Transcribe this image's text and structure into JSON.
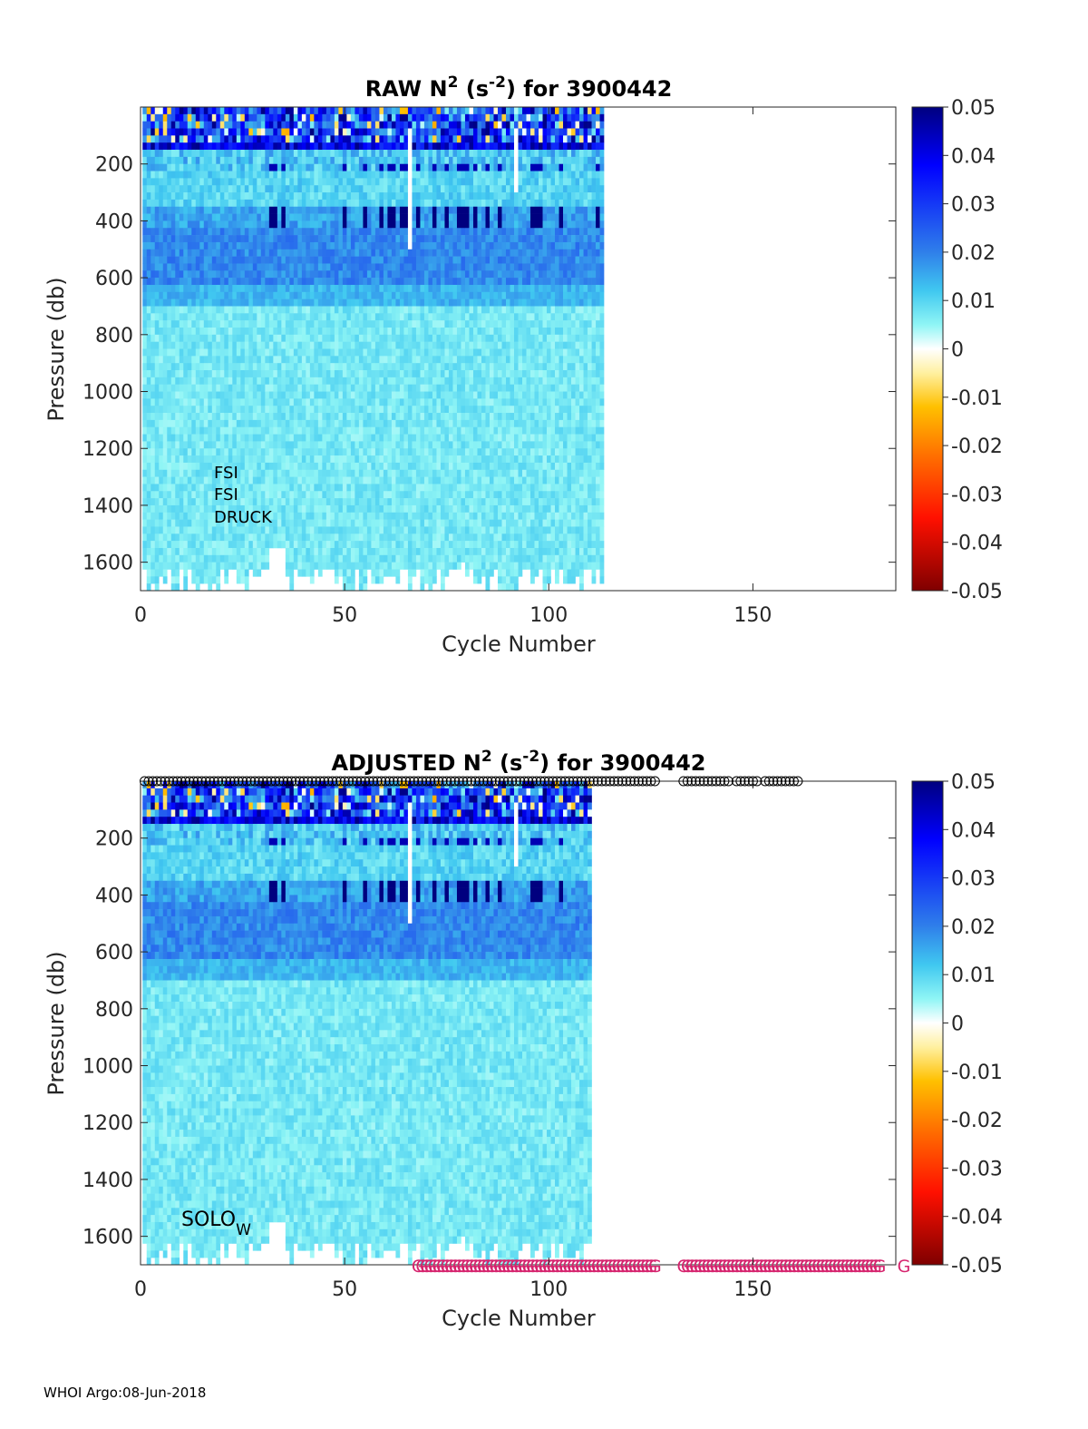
{
  "footer": "WHOI Argo:08-Jun-2018",
  "colors": {
    "axis": "#262626",
    "grade_marker": "#d6246e",
    "qc_marker": "#000000"
  },
  "chart_data": [
    {
      "type": "heatmap",
      "title_main": "RAW N",
      "title_sup": "2",
      "title_mid": " (s",
      "title_sup2": "-2",
      "title_end": ") for 3900442",
      "xlabel": "Cycle Number",
      "ylabel": "Pressure (db)",
      "xlim": [
        0,
        185
      ],
      "ylim": [
        0,
        1700
      ],
      "y_reversed": true,
      "xticks": [
        "0",
        "50",
        "100",
        "150"
      ],
      "yticks": [
        "200",
        "400",
        "600",
        "800",
        "1000",
        "1200",
        "1400",
        "1600"
      ],
      "colorbar": {
        "colormap": "jet-with-white-center",
        "clim": [
          -0.05,
          0.05
        ],
        "ticks": [
          "0.05",
          "0.04",
          "0.03",
          "0.02",
          "0.01",
          "0",
          "-0.01",
          "-0.02",
          "-0.03",
          "-0.04",
          "-0.05"
        ]
      },
      "data_cycles": [
        1,
        113
      ],
      "annotations": [
        "FSI",
        "FSI",
        "DRUCK"
      ]
    },
    {
      "type": "heatmap",
      "title_main": "ADJUSTED N",
      "title_sup": "2",
      "title_mid": " (s",
      "title_sup2": "-2",
      "title_end": ") for 3900442",
      "xlabel": "Cycle Number",
      "ylabel": "Pressure (db)",
      "xlim": [
        0,
        185
      ],
      "ylim": [
        0,
        1700
      ],
      "y_reversed": true,
      "xticks": [
        "0",
        "50",
        "100",
        "150"
      ],
      "yticks": [
        "200",
        "400",
        "600",
        "800",
        "1000",
        "1200",
        "1400",
        "1600"
      ],
      "colorbar": {
        "colormap": "jet-with-white-center",
        "clim": [
          -0.05,
          0.05
        ],
        "ticks": [
          "0.05",
          "0.04",
          "0.03",
          "0.02",
          "0.01",
          "0",
          "-0.01",
          "-0.02",
          "-0.03",
          "-0.04",
          "-0.05"
        ]
      },
      "data_cycles": [
        1,
        110
      ],
      "solo_label": "SOLO",
      "solo_sub": "W",
      "qc_markers": {
        "symbol": "o",
        "ranges": [
          [
            1,
            126
          ],
          [
            133,
            144
          ],
          [
            146,
            151
          ],
          [
            153,
            161
          ]
        ]
      },
      "grade_markers": {
        "symbol": "G",
        "ranges": [
          [
            68,
            126
          ],
          [
            133,
            181
          ]
        ],
        "extra": [
          187
        ]
      }
    }
  ]
}
